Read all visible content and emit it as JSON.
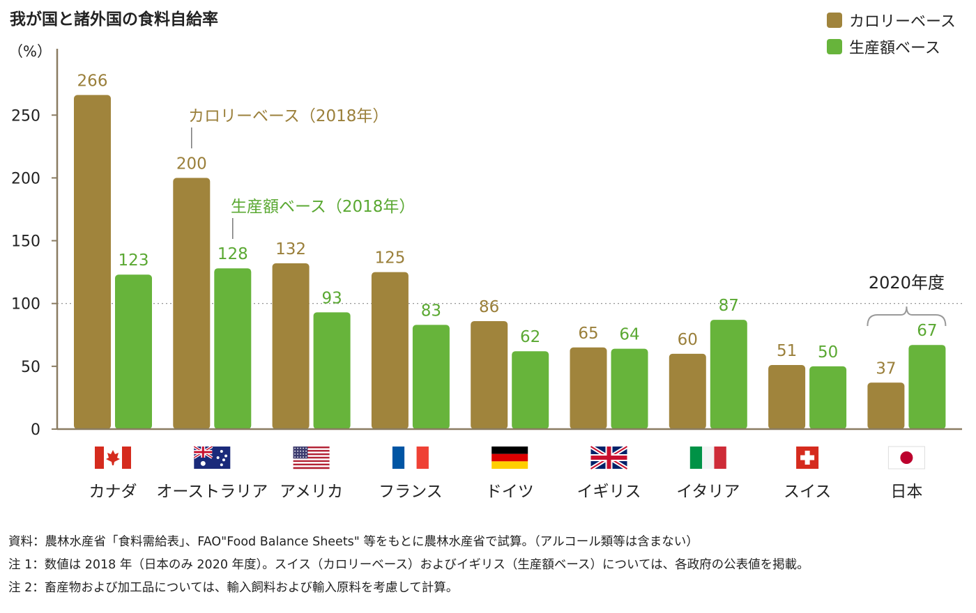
{
  "title": "我が国と諸外国の食料自給率",
  "unit_label": "（%）",
  "legend": [
    {
      "label": "カロリーベース",
      "color": "#a0843c"
    },
    {
      "label": "生産額ベース",
      "color": "#67b43b"
    }
  ],
  "chart_data": {
    "type": "bar",
    "categories": [
      "カナダ",
      "オーストラリア",
      "アメリカ",
      "フランス",
      "ドイツ",
      "イギリス",
      "イタリア",
      "スイス",
      "日本"
    ],
    "flags": [
      "canada-flag-icon",
      "australia-flag-icon",
      "usa-flag-icon",
      "france-flag-icon",
      "germany-flag-icon",
      "uk-flag-icon",
      "italy-flag-icon",
      "switzerland-flag-icon",
      "japan-flag-icon"
    ],
    "series": [
      {
        "name": "カロリーベース",
        "color": "#a0843c",
        "values": [
          266,
          200,
          132,
          125,
          86,
          65,
          60,
          51,
          37
        ]
      },
      {
        "name": "生産額ベース",
        "color": "#67b43b",
        "values": [
          123,
          128,
          93,
          83,
          62,
          64,
          87,
          50,
          67
        ]
      }
    ],
    "yticks": [
      0,
      50,
      100,
      150,
      200,
      250
    ],
    "ylim": [
      0,
      300
    ],
    "reference_line": 100,
    "grid": false,
    "legend_position": "top-right",
    "annotations": {
      "calorie": "カロリーベース（2018年）",
      "production": "生産額ベース（2018年）",
      "japan_year": "2020年度"
    }
  },
  "notes": [
    "資料：農林水産省「食料需給表」、FAO\"Food Balance Sheets\" 等をもとに農林水産省で試算。（アルコール類等は含まない）",
    "注 1：数値は 2018 年（日本のみ 2020 年度）。スイス（カロリーベース）およびイギリス（生産額ベース）については、各政府の公表値を掲載。",
    "注 2：畜産物および加工品については、輸入飼料および輸入原料を考慮して計算。"
  ]
}
